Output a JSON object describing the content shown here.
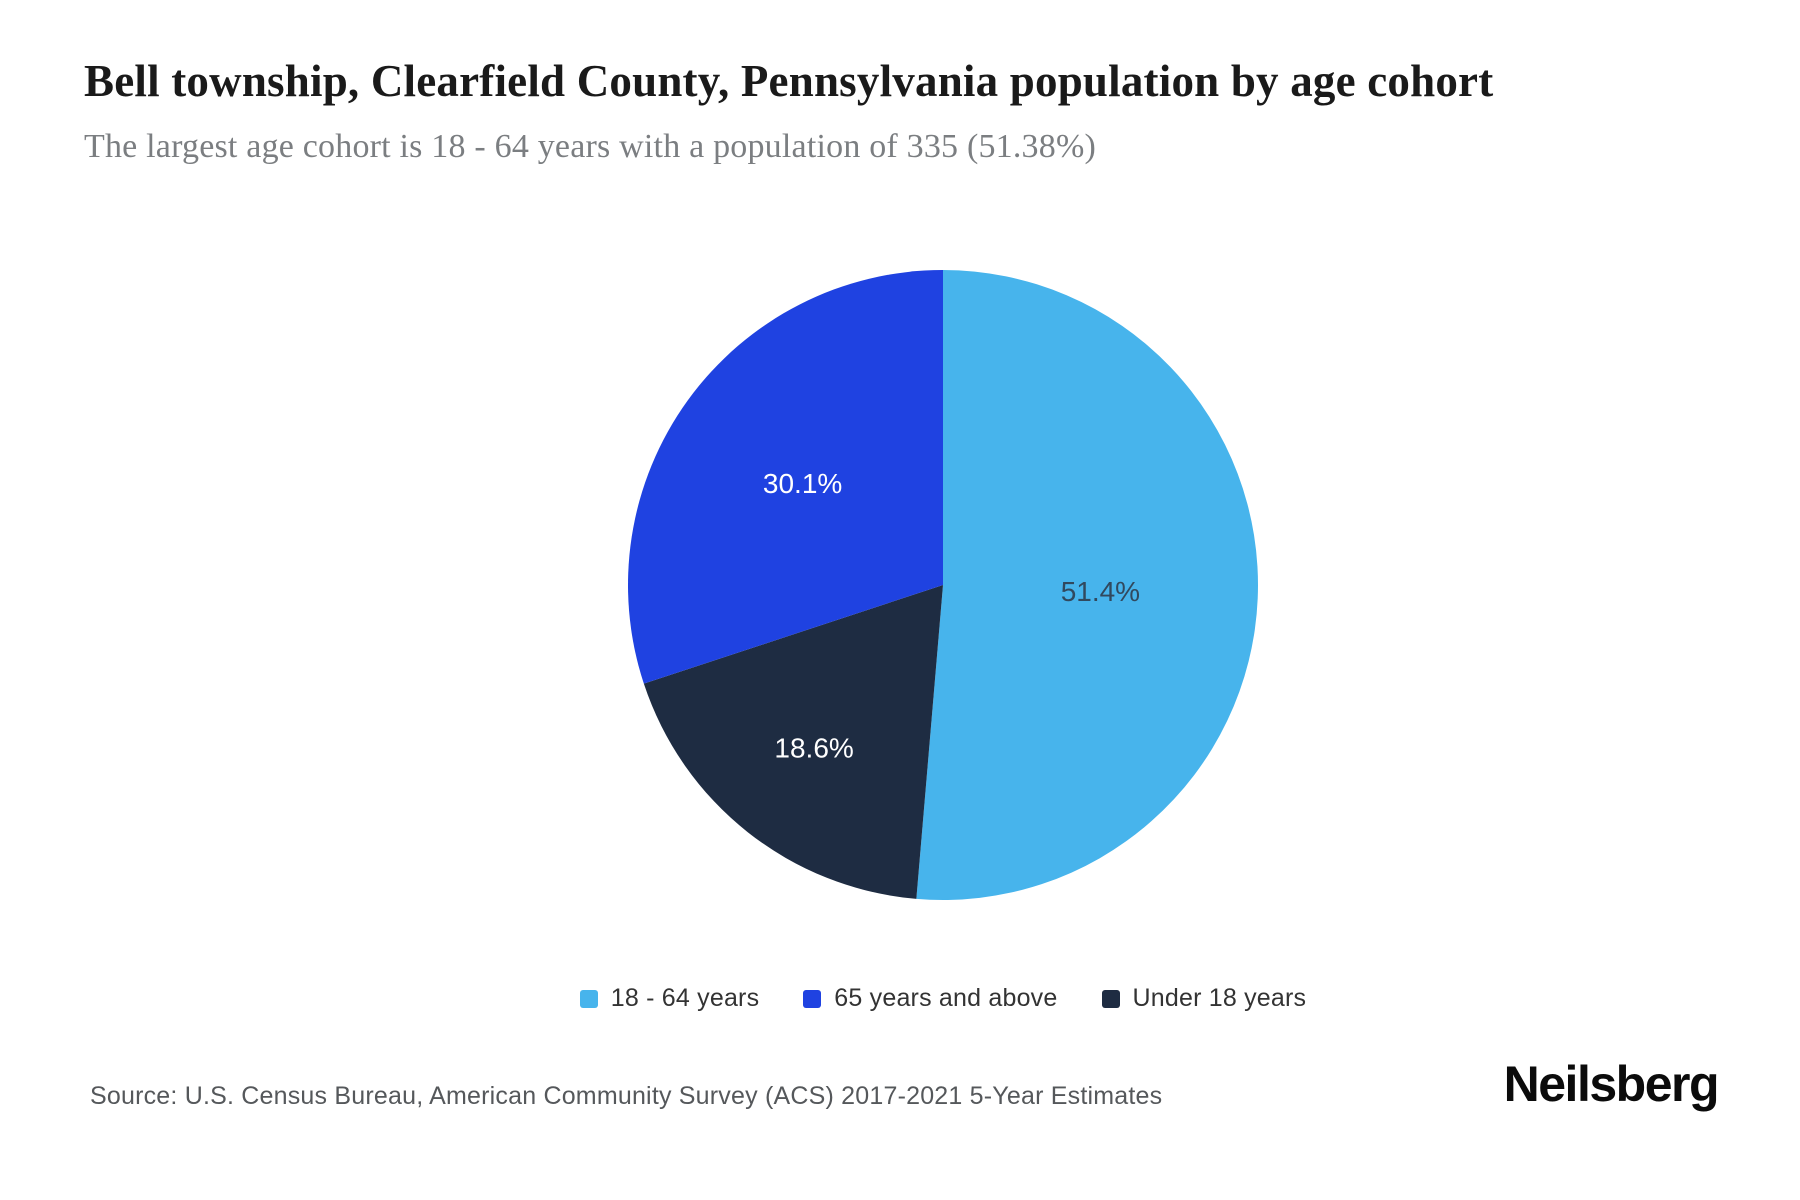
{
  "header": {
    "title": "Bell township, Clearfield County, Pennsylvania population by age cohort",
    "subtitle": "The largest age cohort is 18 - 64 years with a population of 335 (51.38%)"
  },
  "chart_data": {
    "type": "pie",
    "title": "Bell township, Clearfield County, Pennsylvania population by age cohort",
    "slices": [
      {
        "label": "18 - 64 years",
        "value": 51.4,
        "display": "51.4%",
        "color": "#47b4ec",
        "label_color": "#31495e",
        "label_radius_factor": 0.5
      },
      {
        "label": "65 years and above",
        "value": 30.1,
        "display": "30.1%",
        "color": "#1f42e1",
        "label_color": "#ffffff",
        "label_radius_factor": 0.55
      },
      {
        "label": "Under 18 years",
        "value": 18.6,
        "display": "18.6%",
        "color": "#1e2c42",
        "label_color": "#ffffff",
        "label_radius_factor": 0.66
      }
    ],
    "render_order_clockwise_from_top": [
      0,
      2,
      1
    ],
    "start_angle": "12-oclock",
    "direction": "clockwise",
    "legend_position": "bottom",
    "largest_cohort": {
      "label": "18 - 64 years",
      "population": 335,
      "share_pct": 51.38
    }
  },
  "footer": {
    "source": "Source: U.S. Census Bureau, American Community Survey (ACS) 2017-2021 5-Year Estimates",
    "brand": "Neilsberg"
  }
}
